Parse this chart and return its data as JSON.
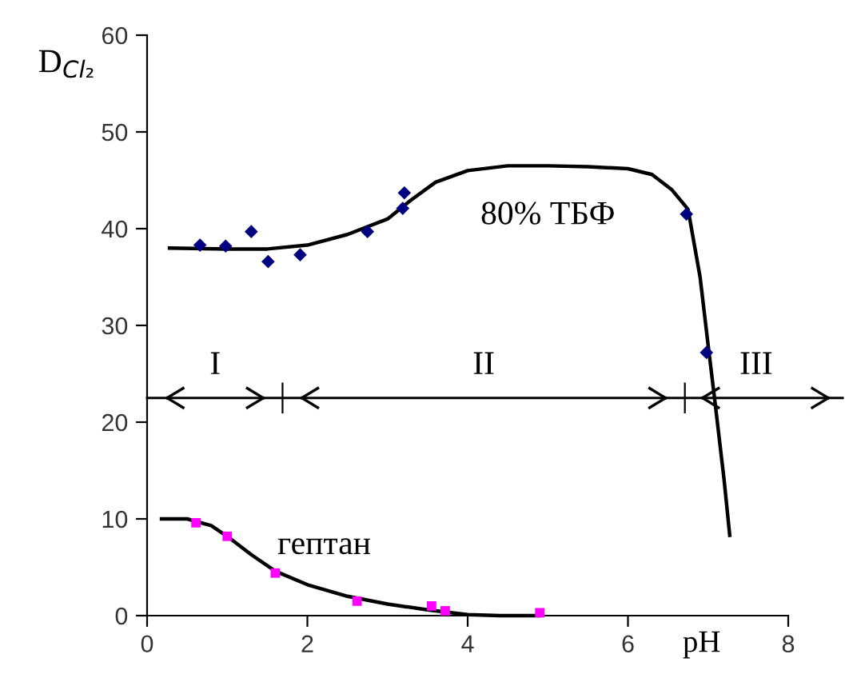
{
  "chart_data": {
    "type": "scatter",
    "xlabel": "pH",
    "ylabel": "D$_{Cl₂}$",
    "xlim": [
      0,
      8
    ],
    "ylim": [
      0,
      60
    ],
    "xticks": [
      0,
      2,
      4,
      6,
      8
    ],
    "yticks": [
      0,
      10,
      20,
      30,
      40,
      50,
      60
    ],
    "grid": false,
    "series": [
      {
        "type": "scatter",
        "marker": "diamond",
        "color": "#000080",
        "x": [
          0.66,
          0.98,
          1.3,
          1.51,
          1.91,
          2.75,
          3.19,
          3.21,
          6.73,
          6.98
        ],
        "values": [
          38.3,
          38.2,
          39.7,
          36.6,
          37.3,
          39.7,
          42.1,
          43.7,
          41.5,
          27.2
        ]
      },
      {
        "type": "line",
        "marker": "none",
        "line_style": "solid",
        "color": "#000000",
        "x": [
          0.28,
          1.0,
          1.5,
          2.0,
          2.5,
          3.0,
          3.3,
          3.6,
          4.0,
          4.5,
          5.0,
          5.5,
          6.0,
          6.3,
          6.55,
          6.75,
          6.9,
          7.0,
          7.08,
          7.2,
          7.27
        ],
        "values": [
          38.0,
          37.9,
          37.9,
          38.3,
          39.4,
          41.0,
          43.0,
          44.8,
          46.0,
          46.5,
          46.5,
          46.4,
          46.2,
          45.6,
          44.0,
          42.0,
          35.0,
          28.0,
          22.5,
          14.0,
          8.3
        ]
      },
      {
        "type": "scatter",
        "marker": "square",
        "color": "#ff00ff",
        "x": [
          0.61,
          1.0,
          1.6,
          2.62,
          3.55,
          3.72,
          4.9
        ],
        "values": [
          9.6,
          8.2,
          4.4,
          1.5,
          1.0,
          0.5,
          0.3
        ]
      },
      {
        "type": "line",
        "marker": "none",
        "line_style": "solid",
        "color": "#000000",
        "x": [
          0.18,
          0.5,
          0.8,
          1.0,
          1.3,
          1.6,
          2.0,
          2.5,
          3.0,
          3.5,
          4.0,
          4.4,
          4.9
        ],
        "values": [
          10.0,
          10.0,
          9.3,
          8.2,
          6.3,
          4.6,
          3.2,
          2.0,
          1.2,
          0.6,
          0.1,
          0,
          0
        ]
      }
    ],
    "ref_lines": [
      {
        "axis": "y",
        "value": 22.5,
        "color": "#000000",
        "line_style": "solid"
      }
    ],
    "annotations": [
      "80% ТБФ",
      "гептан",
      "I",
      "II",
      "III"
    ]
  }
}
